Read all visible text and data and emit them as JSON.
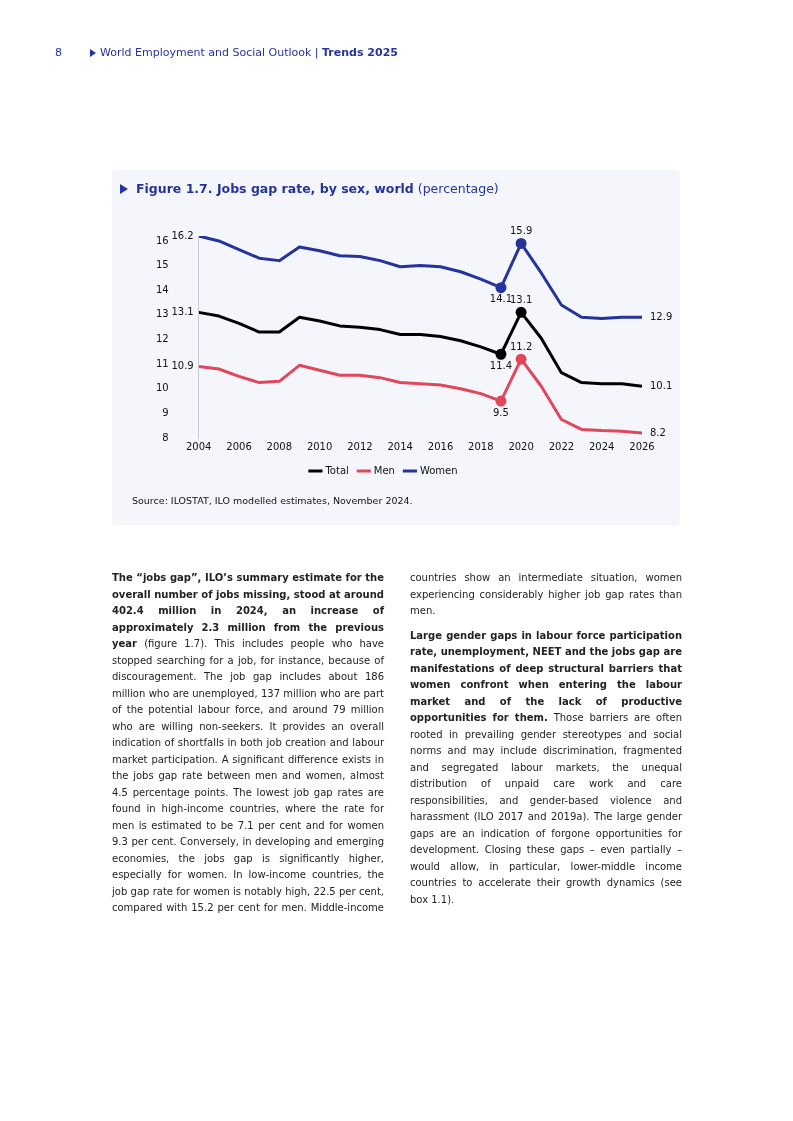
{
  "chart_data": {
    "type": "line",
    "title": "Figure 1.7.  Jobs gap rate, by sex, world",
    "subtitle": "(percentage)",
    "x": [
      2004,
      2005,
      2006,
      2007,
      2008,
      2009,
      2010,
      2011,
      2012,
      2013,
      2014,
      2015,
      2016,
      2017,
      2018,
      2019,
      2020,
      2021,
      2022,
      2023,
      2024,
      2025,
      2026
    ],
    "xlim": [
      2004,
      2026
    ],
    "xticks": [
      2004,
      2006,
      2008,
      2010,
      2012,
      2014,
      2016,
      2018,
      2020,
      2022,
      2024,
      2026
    ],
    "ylim": [
      8,
      16.2
    ],
    "yticks": [
      8,
      9,
      10,
      11,
      12,
      13,
      14,
      15,
      16
    ],
    "grid": false,
    "legend": "bottom",
    "series": [
      {
        "name": "Total",
        "color": "#000000",
        "values": [
          13.1,
          12.95,
          12.65,
          12.3,
          12.3,
          12.9,
          12.75,
          12.55,
          12.5,
          12.4,
          12.2,
          12.2,
          12.12,
          11.95,
          11.7,
          11.4,
          13.1,
          12.05,
          10.65,
          10.25,
          10.2,
          10.2,
          10.1
        ],
        "value_labels": [
          "13.1",
          null,
          null,
          null,
          null,
          null,
          null,
          null,
          null,
          null,
          null,
          null,
          null,
          null,
          null,
          "11.4",
          "13.1",
          null,
          null,
          null,
          null,
          null,
          "10.1"
        ]
      },
      {
        "name": "Men",
        "color": "#e0475a",
        "values": [
          10.9,
          10.8,
          10.5,
          10.25,
          10.3,
          10.95,
          10.75,
          10.55,
          10.55,
          10.45,
          10.25,
          10.2,
          10.15,
          10.0,
          9.8,
          9.5,
          11.2,
          10.1,
          8.75,
          8.35,
          8.3,
          8.27,
          8.2
        ],
        "value_labels": [
          "10.9",
          null,
          null,
          null,
          null,
          null,
          null,
          null,
          null,
          null,
          null,
          null,
          null,
          null,
          null,
          "9.5",
          "11.2",
          null,
          null,
          null,
          null,
          null,
          "8.2"
        ]
      },
      {
        "name": "Women",
        "color": "#25349c",
        "values": [
          16.2,
          16.0,
          15.65,
          15.3,
          15.2,
          15.75,
          15.6,
          15.4,
          15.37,
          15.2,
          14.95,
          15.0,
          14.95,
          14.75,
          14.45,
          14.1,
          15.9,
          14.7,
          13.4,
          12.9,
          12.85,
          12.9,
          12.9
        ],
        "value_labels": [
          "16.2",
          null,
          null,
          null,
          null,
          null,
          null,
          null,
          null,
          null,
          null,
          null,
          null,
          null,
          null,
          "14.1",
          "15.9",
          null,
          null,
          null,
          null,
          null,
          "12.9"
        ]
      }
    ],
    "annotations": [
      "8",
      "World Employment and Social Outlook |",
      "Trends 2025",
      "Source: ILOSTAT, ILO modelled estimates, November 2024.",
      "The “jobs gap”, ILO’s summary estimate for the overall number of jobs missing, stood at around 402.4 million in 2024, an increase of approximately 2.3 million from the previous year",
      "(figure 1.7). This includes people who have stopped searching for a job, for instance, because of discouragement. The job gap includes about 186 million who are unemployed, 137 million who are part of the potential labour force, and around 79 million who are willing non-seekers. It provides an overall indication of shortfalls in both job creation and labour market participation. A significant difference exists in the jobs gap rate between men and women, almost 4.5 percentage points. The lowest job gap rates are found in high-income countries, where the rate for men is estimated to be 7.1 per cent and for women 9.3 per cent. Conversely, in developing and emerging economies, the jobs gap is significantly higher, especially for women. In low-income countries, the job gap rate for women is notably high, 22.5 per cent, compared with 15.2 per cent for men. Middle-income countries show an intermediate situation, women experiencing considerably higher job gap rates than men.",
      "Large gender gaps in labour force participation rate, unemployment, NEET and the jobs gap are manifestations of deep structural barriers that women confront when entering the labour market and of the lack of productive opportunities for them.",
      " Those barriers are often rooted in prevailing gender stereotypes and social norms and may include discrimination, fragmented and segregated labour markets, the unequal distribution of unpaid care work and care responsibilities, and gender-based violence and harassment (ILO 2017 and 2019a). The large gender gaps are an indication of forgone opportunities for development. Closing these gaps – even partially – would allow, in particular, lower-middle income countries to accelerate their growth dynamics (see box 1.1)."
    ]
  }
}
